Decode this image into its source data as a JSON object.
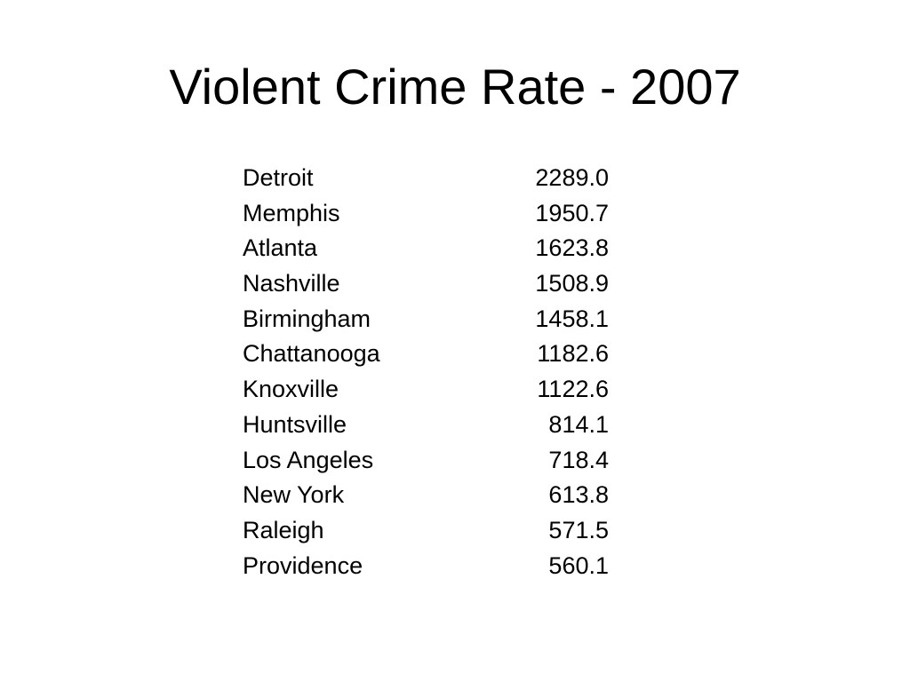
{
  "title": "Violent Crime Rate - 2007",
  "rows": [
    {
      "city": "Detroit",
      "rate": "2289.0"
    },
    {
      "city": "Memphis",
      "rate": "1950.7"
    },
    {
      "city": "Atlanta",
      "rate": "1623.8"
    },
    {
      "city": "Nashville",
      "rate": "1508.9"
    },
    {
      "city": "Birmingham",
      "rate": "1458.1"
    },
    {
      "city": "Chattanooga",
      "rate": "1182.6"
    },
    {
      "city": "Knoxville",
      "rate": "1122.6"
    },
    {
      "city": "Huntsville",
      "rate": "814.1"
    },
    {
      "city": "Los Angeles",
      "rate": "718.4"
    },
    {
      "city": "New York",
      "rate": "613.8"
    },
    {
      "city": "Raleigh",
      "rate": "571.5"
    },
    {
      "city": "Providence",
      "rate": "560.1"
    }
  ]
}
